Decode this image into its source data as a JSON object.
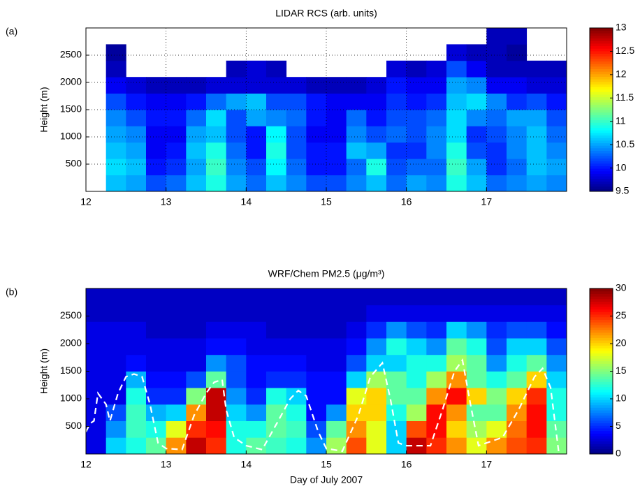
{
  "chart_data": [
    {
      "type": "heatmap",
      "panel_label": "(a)",
      "title": "LIDAR RCS (arb. units)",
      "ylabel": "Height (m)",
      "colormap": "jet",
      "grid": true,
      "x": [
        12.125,
        12.375,
        12.625,
        12.875,
        13.125,
        13.375,
        13.625,
        13.875,
        14.125,
        14.375,
        14.625,
        14.875,
        15.125,
        15.375,
        15.625,
        15.875,
        16.125,
        16.375,
        16.625,
        16.875,
        17.125,
        17.375,
        17.625,
        17.875
      ],
      "y": [
        150,
        450,
        750,
        1050,
        1350,
        1650,
        1950,
        2250,
        2550,
        2850
      ],
      "z": [
        [
          null,
          10.6,
          10.5,
          10.2,
          10.3,
          10.6,
          10.9,
          10.5,
          10.3,
          10.6,
          10.4,
          10.2,
          10.2,
          10.4,
          10.6,
          10.3,
          10.5,
          10.4,
          10.9,
          10.6,
          10.3,
          10.4,
          10.5,
          10.4
        ],
        [
          null,
          10.7,
          10.6,
          10.0,
          10.1,
          10.5,
          11.0,
          10.4,
          10.2,
          10.8,
          10.3,
          10.0,
          10.0,
          10.3,
          10.9,
          10.2,
          10.3,
          10.3,
          11.0,
          10.5,
          10.1,
          10.3,
          10.6,
          10.5
        ],
        [
          null,
          10.6,
          10.5,
          9.9,
          10.0,
          10.6,
          10.9,
          10.3,
          10.0,
          10.9,
          10.2,
          10.0,
          10.0,
          10.6,
          10.5,
          10.1,
          10.1,
          10.4,
          10.9,
          10.2,
          10.1,
          10.4,
          10.6,
          10.4
        ],
        [
          null,
          10.5,
          10.4,
          9.9,
          9.9,
          10.5,
          10.6,
          10.2,
          10.0,
          10.8,
          10.2,
          9.9,
          9.9,
          10.4,
          10.2,
          10.3,
          10.2,
          10.4,
          10.7,
          10.1,
          10.2,
          10.4,
          10.6,
          10.3
        ],
        [
          null,
          10.4,
          10.2,
          10.0,
          10.0,
          10.3,
          10.7,
          10.2,
          10.5,
          10.4,
          10.3,
          10.0,
          9.9,
          10.3,
          10.0,
          10.2,
          10.2,
          10.3,
          10.7,
          10.4,
          10.3,
          10.5,
          10.5,
          10.2
        ],
        [
          null,
          10.2,
          10.0,
          9.9,
          9.9,
          10.0,
          10.3,
          10.5,
          10.6,
          10.2,
          10.2,
          10.0,
          9.9,
          9.9,
          9.9,
          10.1,
          10.0,
          10.1,
          10.6,
          10.7,
          10.4,
          10.1,
          10.2,
          10.0
        ],
        [
          null,
          9.9,
          9.8,
          9.7,
          9.7,
          9.7,
          9.8,
          9.8,
          9.8,
          9.8,
          9.8,
          9.7,
          9.7,
          9.7,
          9.8,
          10.0,
          9.9,
          9.9,
          10.5,
          10.4,
          9.9,
          9.9,
          9.8,
          9.8
        ],
        [
          null,
          9.7,
          null,
          null,
          null,
          null,
          null,
          9.7,
          9.8,
          9.7,
          null,
          null,
          null,
          null,
          null,
          9.8,
          9.7,
          9.8,
          10.2,
          9.9,
          9.7,
          9.7,
          9.7,
          9.7
        ],
        [
          null,
          9.6,
          null,
          null,
          null,
          null,
          null,
          null,
          null,
          null,
          null,
          null,
          null,
          null,
          null,
          null,
          null,
          null,
          9.8,
          9.7,
          9.7,
          9.6,
          null,
          null
        ],
        [
          null,
          null,
          null,
          null,
          null,
          null,
          null,
          null,
          null,
          null,
          null,
          null,
          null,
          null,
          null,
          null,
          null,
          null,
          null,
          null,
          9.7,
          9.7,
          null,
          null
        ]
      ],
      "xlim": [
        12,
        18
      ],
      "ylim": [
        0,
        3000
      ],
      "xticks": [
        12,
        13,
        14,
        15,
        16,
        17
      ],
      "yticks": [
        500,
        1000,
        1500,
        2000,
        2500
      ],
      "clim": [
        9.5,
        13
      ],
      "cticks": [
        9.5,
        10,
        10.5,
        11,
        11.5,
        12,
        12.5,
        13
      ]
    },
    {
      "type": "heatmap",
      "panel_label": "(b)",
      "title": "WRF/Chem PM2.5 (μg/m³)",
      "ylabel": "Height (m)",
      "xlabel": "Day of July 2007",
      "colormap": "jet",
      "grid": false,
      "x": [
        12.125,
        12.375,
        12.625,
        12.875,
        13.125,
        13.375,
        13.625,
        13.875,
        14.125,
        14.375,
        14.625,
        14.875,
        15.125,
        15.375,
        15.625,
        15.875,
        16.125,
        16.375,
        16.625,
        16.875,
        17.125,
        17.375,
        17.625,
        17.875
      ],
      "y": [
        150,
        450,
        750,
        1050,
        1350,
        1650,
        1950,
        2250,
        2550,
        2850
      ],
      "z": [
        [
          3,
          10,
          12,
          14,
          22,
          28,
          25,
          12,
          14,
          13,
          12,
          8,
          16,
          24,
          18,
          10,
          28,
          25,
          22,
          18,
          22,
          24,
          25,
          15
        ],
        [
          3,
          8,
          13,
          12,
          18,
          25,
          26,
          12,
          12,
          14,
          13,
          6,
          14,
          22,
          18,
          10,
          24,
          26,
          20,
          16,
          18,
          23,
          26,
          14
        ],
        [
          3,
          6,
          13,
          9,
          10,
          22,
          28,
          10,
          8,
          14,
          12,
          4,
          8,
          20,
          20,
          12,
          16,
          26,
          22,
          14,
          14,
          22,
          26,
          12
        ],
        [
          3,
          3,
          12,
          5,
          5,
          15,
          28,
          8,
          5,
          12,
          10,
          4,
          4,
          18,
          20,
          14,
          14,
          22,
          26,
          20,
          15,
          20,
          25,
          12
        ],
        [
          3,
          3,
          9,
          4,
          4,
          6,
          14,
          6,
          4,
          5,
          5,
          4,
          4,
          10,
          16,
          14,
          12,
          16,
          22,
          14,
          12,
          14,
          20,
          10
        ],
        [
          3,
          3,
          4,
          3,
          3,
          3,
          8,
          6,
          4,
          4,
          4,
          3,
          3,
          6,
          10,
          10,
          12,
          12,
          16,
          14,
          8,
          12,
          14,
          8
        ],
        [
          3,
          3,
          3,
          3,
          3,
          3,
          4,
          4,
          3,
          3,
          3,
          3,
          3,
          4,
          8,
          12,
          10,
          8,
          14,
          12,
          6,
          10,
          10,
          6
        ],
        [
          3,
          3,
          3,
          2,
          2,
          2,
          3,
          3,
          3,
          2,
          2,
          2,
          2,
          3,
          5,
          8,
          6,
          5,
          10,
          8,
          5,
          6,
          6,
          4
        ],
        [
          2,
          2,
          2,
          2,
          2,
          2,
          2,
          2,
          2,
          2,
          2,
          2,
          2,
          2,
          3,
          3,
          3,
          3,
          3,
          3,
          3,
          3,
          3,
          3
        ],
        [
          2,
          2,
          2,
          2,
          2,
          2,
          2,
          2,
          2,
          2,
          2,
          2,
          2,
          2,
          2,
          2,
          2,
          2,
          2,
          2,
          2,
          2,
          2,
          2
        ]
      ],
      "line": {
        "color": "#ffffff",
        "dashed": true,
        "x": [
          12,
          12.05,
          12.1,
          12.15,
          12.25,
          12.3,
          12.4,
          12.5,
          12.6,
          12.7,
          12.8,
          12.9,
          13,
          13.2,
          13.35,
          13.5,
          13.6,
          13.7,
          13.75,
          13.85,
          14,
          14.2,
          14.4,
          14.55,
          14.65,
          14.75,
          14.9,
          15,
          15.2,
          15.4,
          15.55,
          15.7,
          15.8,
          15.9,
          16,
          16.3,
          16.45,
          16.6,
          16.7,
          16.8,
          16.9,
          17,
          17.2,
          17.4,
          17.6,
          17.7,
          17.8,
          17.9
        ],
        "values": [
          400,
          550,
          600,
          1100,
          900,
          600,
          1100,
          1400,
          1450,
          1400,
          900,
          200,
          100,
          80,
          700,
          1100,
          1300,
          1350,
          800,
          300,
          150,
          80,
          600,
          1000,
          1150,
          1050,
          400,
          100,
          50,
          700,
          1400,
          1650,
          1000,
          200,
          150,
          150,
          800,
          1500,
          1700,
          900,
          150,
          200,
          300,
          800,
          1400,
          1550,
          1200,
          50
        ]
      },
      "xlim": [
        12,
        18
      ],
      "ylim": [
        0,
        3000
      ],
      "xticks": [
        12,
        13,
        14,
        15,
        16,
        17
      ],
      "yticks": [
        500,
        1000,
        1500,
        2000,
        2500
      ],
      "clim": [
        0,
        30
      ],
      "cticks": [
        0,
        5,
        10,
        15,
        20,
        25,
        30
      ]
    }
  ]
}
